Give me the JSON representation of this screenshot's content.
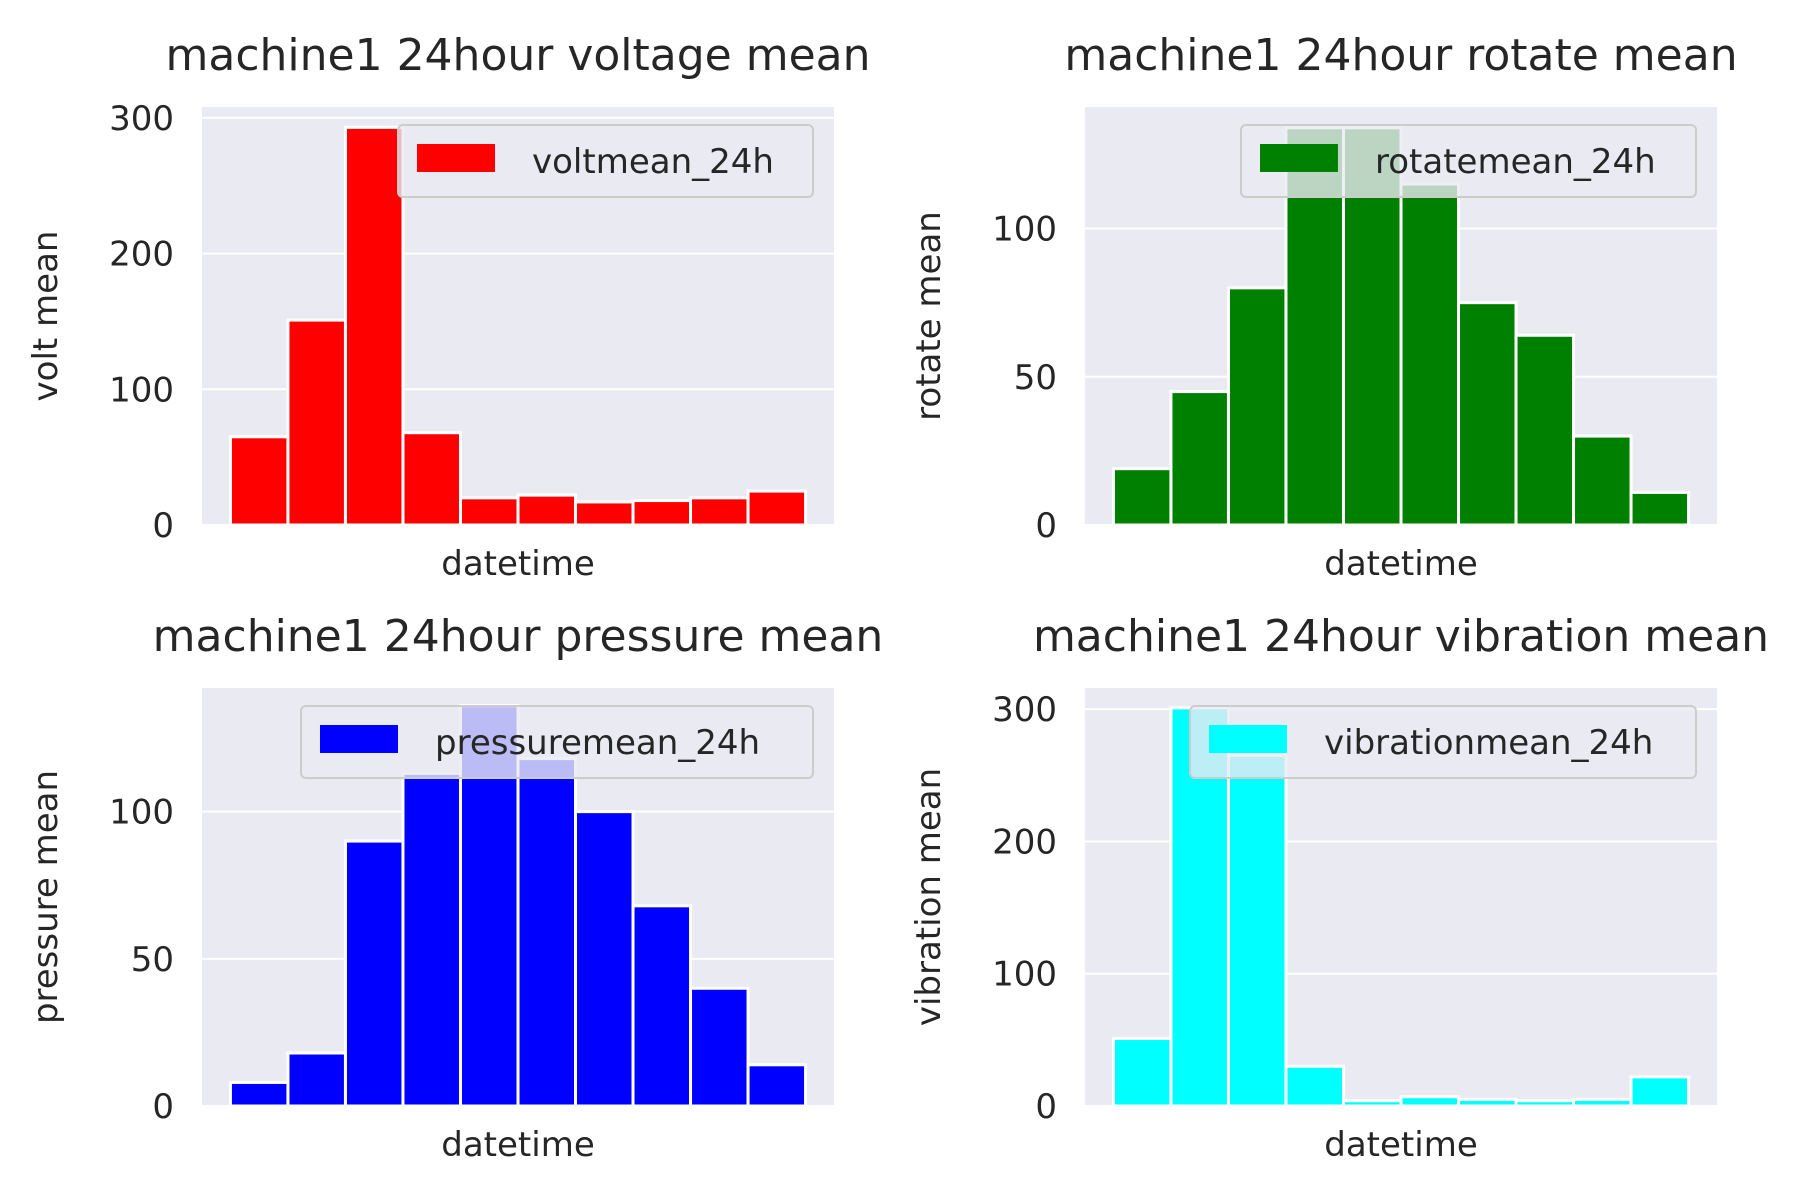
{
  "figure": {
    "background": "#ffffff",
    "axes_facecolor": "#eaeaf2",
    "grid_color": "#ffffff"
  },
  "chart_data": [
    {
      "type": "bar",
      "title": "machine1 24hour voltage mean",
      "xlabel": "datetime",
      "ylabel": "volt mean",
      "ylim": [
        0,
        308
      ],
      "yticks": [
        0,
        100,
        200,
        300
      ],
      "xticks": [],
      "color": "#ff0000",
      "legend": {
        "label": "voltmean_24h",
        "placement": "upper-right"
      },
      "grid": true,
      "values": [
        65,
        151,
        293,
        68,
        20,
        22,
        17,
        18,
        20,
        25
      ]
    },
    {
      "type": "bar",
      "title": "machine1 24hour rotate mean",
      "xlabel": "datetime",
      "ylabel": "rotate mean",
      "ylim": [
        0,
        141
      ],
      "yticks": [
        0,
        50,
        100
      ],
      "xticks": [],
      "color": "#008000",
      "legend": {
        "label": "rotatemean_24h",
        "placement": "upper-right"
      },
      "grid": true,
      "values": [
        19,
        45,
        80,
        134,
        134,
        115,
        75,
        64,
        30,
        11
      ]
    },
    {
      "type": "bar",
      "title": "machine1 24hour pressure mean",
      "xlabel": "datetime",
      "ylabel": "pressure mean",
      "ylim": [
        0,
        142
      ],
      "yticks": [
        0,
        50,
        100
      ],
      "xticks": [],
      "color": "#0000ff",
      "legend": {
        "label": "pressuremean_24h",
        "placement": "upper-right"
      },
      "grid": true,
      "values": [
        8,
        18,
        90,
        113,
        136,
        118,
        100,
        68,
        40,
        14
      ]
    },
    {
      "type": "bar",
      "title": "machine1 24hour vibration mean",
      "xlabel": "datetime",
      "ylabel": "vibration mean",
      "ylim": [
        0,
        316
      ],
      "yticks": [
        0,
        100,
        200,
        300
      ],
      "xticks": [],
      "color": "#00ffff",
      "legend": {
        "label": "vibrationmean_24h",
        "placement": "upper-right"
      },
      "grid": true,
      "values": [
        51,
        301,
        265,
        30,
        4,
        7,
        5,
        4,
        5,
        22
      ]
    }
  ]
}
